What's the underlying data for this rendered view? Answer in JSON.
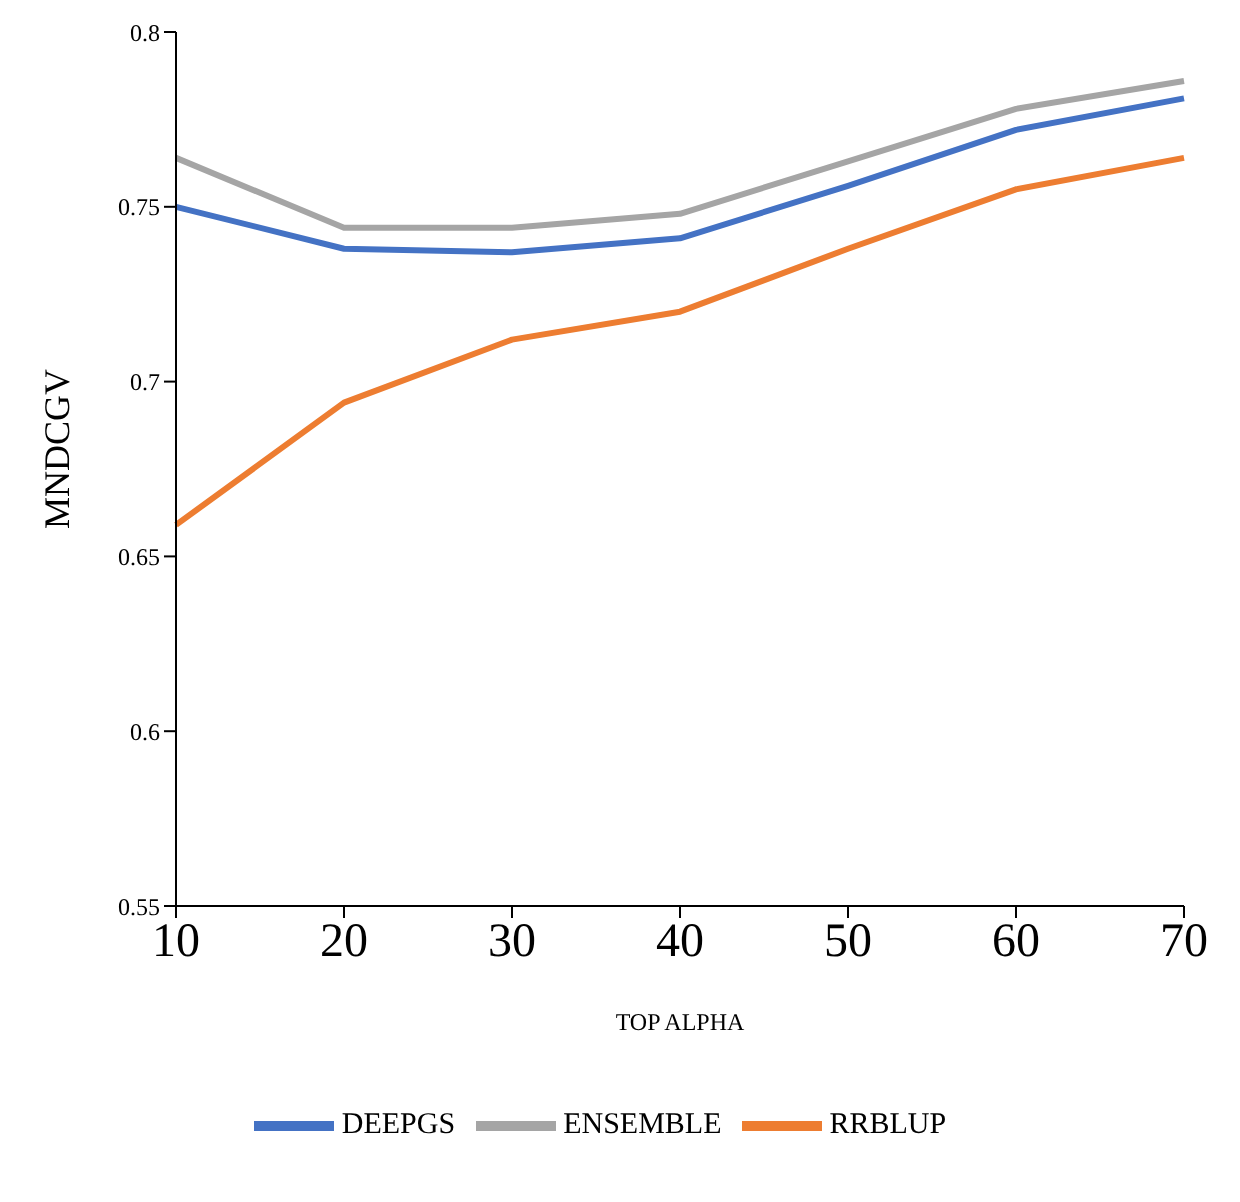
{
  "chart_data": {
    "type": "line",
    "xlabel": "TOP ALPHA",
    "ylabel": "MNDCGV",
    "categories": [
      "10",
      "20",
      "30",
      "40",
      "50",
      "60",
      "70"
    ],
    "series": [
      {
        "name": "DEEPGS",
        "color": "#4472c4",
        "values": [
          0.75,
          0.738,
          0.737,
          0.741,
          0.756,
          0.772,
          0.781
        ]
      },
      {
        "name": "RRBLUP",
        "color": "#ed7d31",
        "values": [
          0.659,
          0.694,
          0.712,
          0.72,
          0.738,
          0.755,
          0.764
        ]
      },
      {
        "name": "ENSEMBLE",
        "color": "#a5a5a5",
        "values": [
          0.764,
          0.744,
          0.744,
          0.748,
          0.763,
          0.778,
          0.786
        ]
      }
    ],
    "ylim": [
      0.55,
      0.8
    ],
    "yticks": [
      0.55,
      0.6,
      0.65,
      0.7,
      0.75,
      0.8
    ],
    "grid": false,
    "legend": "bottom",
    "marker": "none",
    "line_style": "solid"
  }
}
